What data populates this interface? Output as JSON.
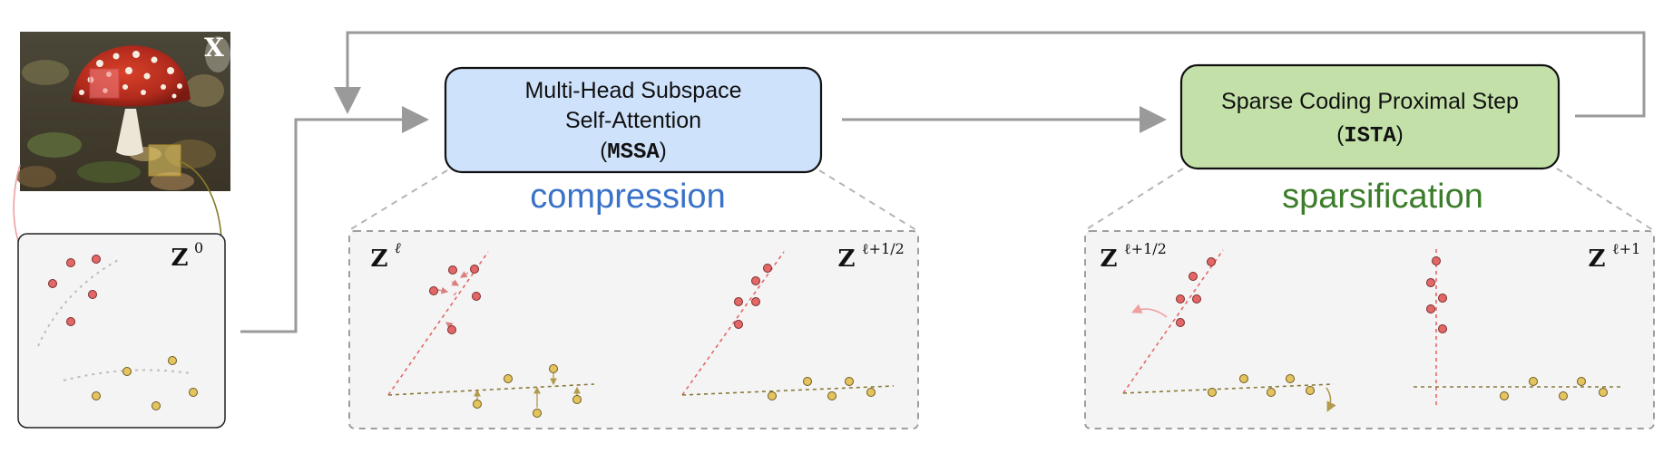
{
  "image_label": "X",
  "z0_label": "Z",
  "z0_sup": "0",
  "mssa": {
    "line1": "Multi-Head Subspace",
    "line2": "Self-Attention",
    "open_paren": "(",
    "abbrev": "MSSA",
    "close_paren": ")",
    "caption": "compression",
    "left_label": "Z",
    "left_sup": "ℓ",
    "right_label": "Z",
    "right_sup": "ℓ+1/2"
  },
  "ista": {
    "line1": "Sparse Coding Proximal Step",
    "open_paren": "(",
    "abbrev": "ISTA",
    "close_paren": ")",
    "caption": "sparsification",
    "left_label": "Z",
    "left_sup": "ℓ+1/2",
    "right_label": "Z",
    "right_sup": "ℓ+1"
  },
  "colors": {
    "mssa_fill": "#cfe2fb",
    "ista_fill": "#c3e0a8",
    "compression_text": "#3a72c9",
    "sparsification_text": "#3c7d2a",
    "red_point": "#e46767",
    "yellow_point": "#e3c45f",
    "arrow_gray": "#9a9a9a",
    "panel_fill": "#f4f4f4"
  }
}
